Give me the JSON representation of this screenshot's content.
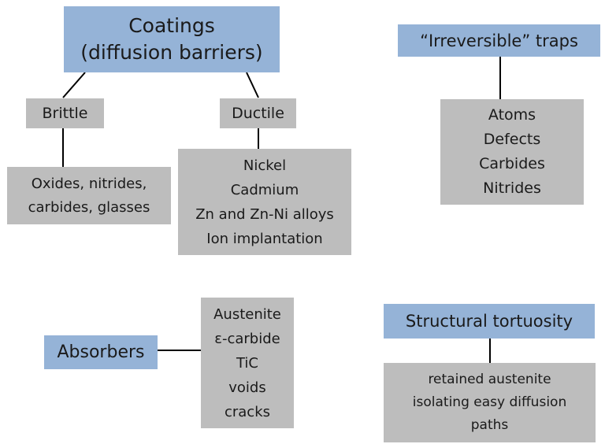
{
  "coatings": {
    "title_lines": [
      "Coatings",
      "(diffusion barriers)"
    ],
    "brittle": {
      "label": "Brittle",
      "examples": [
        "Oxides, nitrides,",
        "carbides, glasses"
      ]
    },
    "ductile": {
      "label": "Ductile",
      "examples": [
        "Nickel",
        "Cadmium",
        "Zn and Zn-Ni alloys",
        "Ion implantation"
      ]
    }
  },
  "irreversible_traps": {
    "title": "“Irreversible” traps",
    "items": [
      "Atoms",
      "Defects",
      "Carbides",
      "Nitrides"
    ]
  },
  "absorbers": {
    "title": "Absorbers",
    "items": [
      "Austenite",
      "ε-carbide",
      "TiC",
      "voids",
      "cracks"
    ]
  },
  "structural_tortuosity": {
    "title": "Structural tortuosity",
    "items": [
      "retained austenite",
      "isolating easy diffusion",
      "paths"
    ]
  },
  "colors": {
    "category_box": "#95b3d7",
    "detail_box": "#bdbdbd",
    "connector": "#000000"
  }
}
